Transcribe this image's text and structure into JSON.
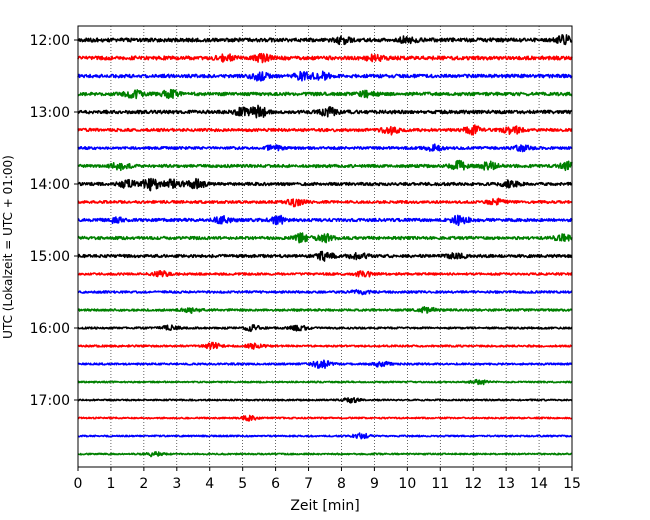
{
  "chart_data": {
    "type": "line",
    "title": "",
    "xlabel": "Zeit  [min]",
    "ylabel": "UTC (Lokalzeit = UTC + 01:00)",
    "xlim": [
      0,
      15
    ],
    "x_ticks": [
      0,
      1,
      2,
      3,
      4,
      5,
      6,
      7,
      8,
      9,
      10,
      11,
      12,
      13,
      14,
      15
    ],
    "x_tick_labels": [
      "0",
      "1",
      "2",
      "3",
      "4",
      "5",
      "6",
      "7",
      "8",
      "9",
      "10",
      "11",
      "12",
      "13",
      "14",
      "15"
    ],
    "y_tick_labels": [
      "12:00",
      "13:00",
      "14:00",
      "15:00",
      "16:00",
      "17:00"
    ],
    "y_tick_rows": [
      0,
      4,
      8,
      12,
      16,
      20
    ],
    "x_grid": true,
    "grid_style": "dotted",
    "legend": "none",
    "trace_interval_minutes": 15,
    "trace_colors": [
      "#000000",
      "#ff0000",
      "#0000ff",
      "#008000"
    ],
    "traces": [
      {
        "start": "12:00",
        "color": "#000000",
        "amplitude": 1.0,
        "events": [
          {
            "t": 8.0,
            "a": 1.6
          },
          {
            "t": 10.0,
            "a": 1.6
          },
          {
            "t": 14.8,
            "a": 2.2
          }
        ]
      },
      {
        "start": "12:15",
        "color": "#ff0000",
        "amplitude": 1.0,
        "events": [
          {
            "t": 4.5,
            "a": 1.5
          },
          {
            "t": 5.6,
            "a": 1.7
          },
          {
            "t": 9.0,
            "a": 1.4
          }
        ]
      },
      {
        "start": "12:30",
        "color": "#0000ff",
        "amplitude": 0.9,
        "events": [
          {
            "t": 5.5,
            "a": 2.0
          },
          {
            "t": 6.8,
            "a": 1.8
          },
          {
            "t": 7.4,
            "a": 1.8
          }
        ]
      },
      {
        "start": "12:45",
        "color": "#008000",
        "amplitude": 0.9,
        "events": [
          {
            "t": 1.7,
            "a": 1.7
          },
          {
            "t": 2.8,
            "a": 1.7
          },
          {
            "t": 8.8,
            "a": 1.4
          }
        ]
      },
      {
        "start": "13:00",
        "color": "#000000",
        "amplitude": 0.9,
        "events": [
          {
            "t": 5.0,
            "a": 2.3
          },
          {
            "t": 5.5,
            "a": 2.8
          },
          {
            "t": 7.6,
            "a": 2.0
          }
        ]
      },
      {
        "start": "13:15",
        "color": "#ff0000",
        "amplitude": 0.8,
        "events": [
          {
            "t": 9.5,
            "a": 1.9
          },
          {
            "t": 12.0,
            "a": 2.1
          },
          {
            "t": 13.2,
            "a": 2.0
          }
        ]
      },
      {
        "start": "13:30",
        "color": "#0000ff",
        "amplitude": 0.7,
        "events": [
          {
            "t": 5.9,
            "a": 1.4
          },
          {
            "t": 10.8,
            "a": 1.6
          },
          {
            "t": 13.5,
            "a": 1.4
          }
        ]
      },
      {
        "start": "13:45",
        "color": "#008000",
        "amplitude": 0.8,
        "events": [
          {
            "t": 1.3,
            "a": 2.0
          },
          {
            "t": 11.6,
            "a": 2.3
          },
          {
            "t": 12.5,
            "a": 2.2
          },
          {
            "t": 14.9,
            "a": 2.0
          }
        ]
      },
      {
        "start": "14:00",
        "color": "#000000",
        "amplitude": 0.8,
        "events": [
          {
            "t": 1.5,
            "a": 1.8
          },
          {
            "t": 2.2,
            "a": 3.0
          },
          {
            "t": 2.9,
            "a": 2.2
          },
          {
            "t": 3.6,
            "a": 2.2
          },
          {
            "t": 13.1,
            "a": 1.6
          }
        ]
      },
      {
        "start": "14:15",
        "color": "#ff0000",
        "amplitude": 0.7,
        "events": [
          {
            "t": 6.6,
            "a": 2.0
          },
          {
            "t": 12.7,
            "a": 1.4
          }
        ]
      },
      {
        "start": "14:30",
        "color": "#0000ff",
        "amplitude": 0.8,
        "events": [
          {
            "t": 1.1,
            "a": 1.6
          },
          {
            "t": 4.4,
            "a": 1.6
          },
          {
            "t": 6.1,
            "a": 1.9
          },
          {
            "t": 11.6,
            "a": 2.3
          }
        ]
      },
      {
        "start": "14:45",
        "color": "#008000",
        "amplitude": 0.8,
        "events": [
          {
            "t": 6.8,
            "a": 2.0
          },
          {
            "t": 7.5,
            "a": 1.8
          },
          {
            "t": 14.7,
            "a": 1.5
          }
        ]
      },
      {
        "start": "15:00",
        "color": "#000000",
        "amplitude": 0.8,
        "events": [
          {
            "t": 7.5,
            "a": 2.2
          },
          {
            "t": 8.5,
            "a": 1.7
          },
          {
            "t": 11.5,
            "a": 1.4
          }
        ]
      },
      {
        "start": "15:15",
        "color": "#ff0000",
        "amplitude": 0.6,
        "events": [
          {
            "t": 2.5,
            "a": 1.4
          },
          {
            "t": 8.7,
            "a": 1.5
          }
        ]
      },
      {
        "start": "15:30",
        "color": "#0000ff",
        "amplitude": 0.6,
        "events": [
          {
            "t": 8.6,
            "a": 1.3
          }
        ]
      },
      {
        "start": "15:45",
        "color": "#008000",
        "amplitude": 0.6,
        "events": [
          {
            "t": 3.4,
            "a": 1.3
          },
          {
            "t": 10.6,
            "a": 1.3
          }
        ]
      },
      {
        "start": "16:00",
        "color": "#000000",
        "amplitude": 0.5,
        "events": [
          {
            "t": 2.8,
            "a": 1.3
          },
          {
            "t": 5.3,
            "a": 1.5
          },
          {
            "t": 6.7,
            "a": 1.4
          }
        ]
      },
      {
        "start": "16:15",
        "color": "#ff0000",
        "amplitude": 0.5,
        "events": [
          {
            "t": 4.1,
            "a": 1.5
          },
          {
            "t": 5.4,
            "a": 1.4
          }
        ]
      },
      {
        "start": "16:30",
        "color": "#0000ff",
        "amplitude": 0.5,
        "events": [
          {
            "t": 7.4,
            "a": 2.3
          },
          {
            "t": 9.2,
            "a": 1.3
          }
        ]
      },
      {
        "start": "16:45",
        "color": "#008000",
        "amplitude": 0.4,
        "events": [
          {
            "t": 12.2,
            "a": 1.2
          }
        ]
      },
      {
        "start": "17:00",
        "color": "#000000",
        "amplitude": 0.4,
        "events": [
          {
            "t": 8.3,
            "a": 1.2
          }
        ]
      },
      {
        "start": "17:15",
        "color": "#ff0000",
        "amplitude": 0.4,
        "events": [
          {
            "t": 5.2,
            "a": 1.2
          }
        ]
      },
      {
        "start": "17:30",
        "color": "#0000ff",
        "amplitude": 0.4,
        "events": [
          {
            "t": 8.6,
            "a": 1.3
          }
        ]
      },
      {
        "start": "17:45",
        "color": "#008000",
        "amplitude": 0.4,
        "events": [
          {
            "t": 2.3,
            "a": 1.2
          }
        ]
      }
    ]
  }
}
